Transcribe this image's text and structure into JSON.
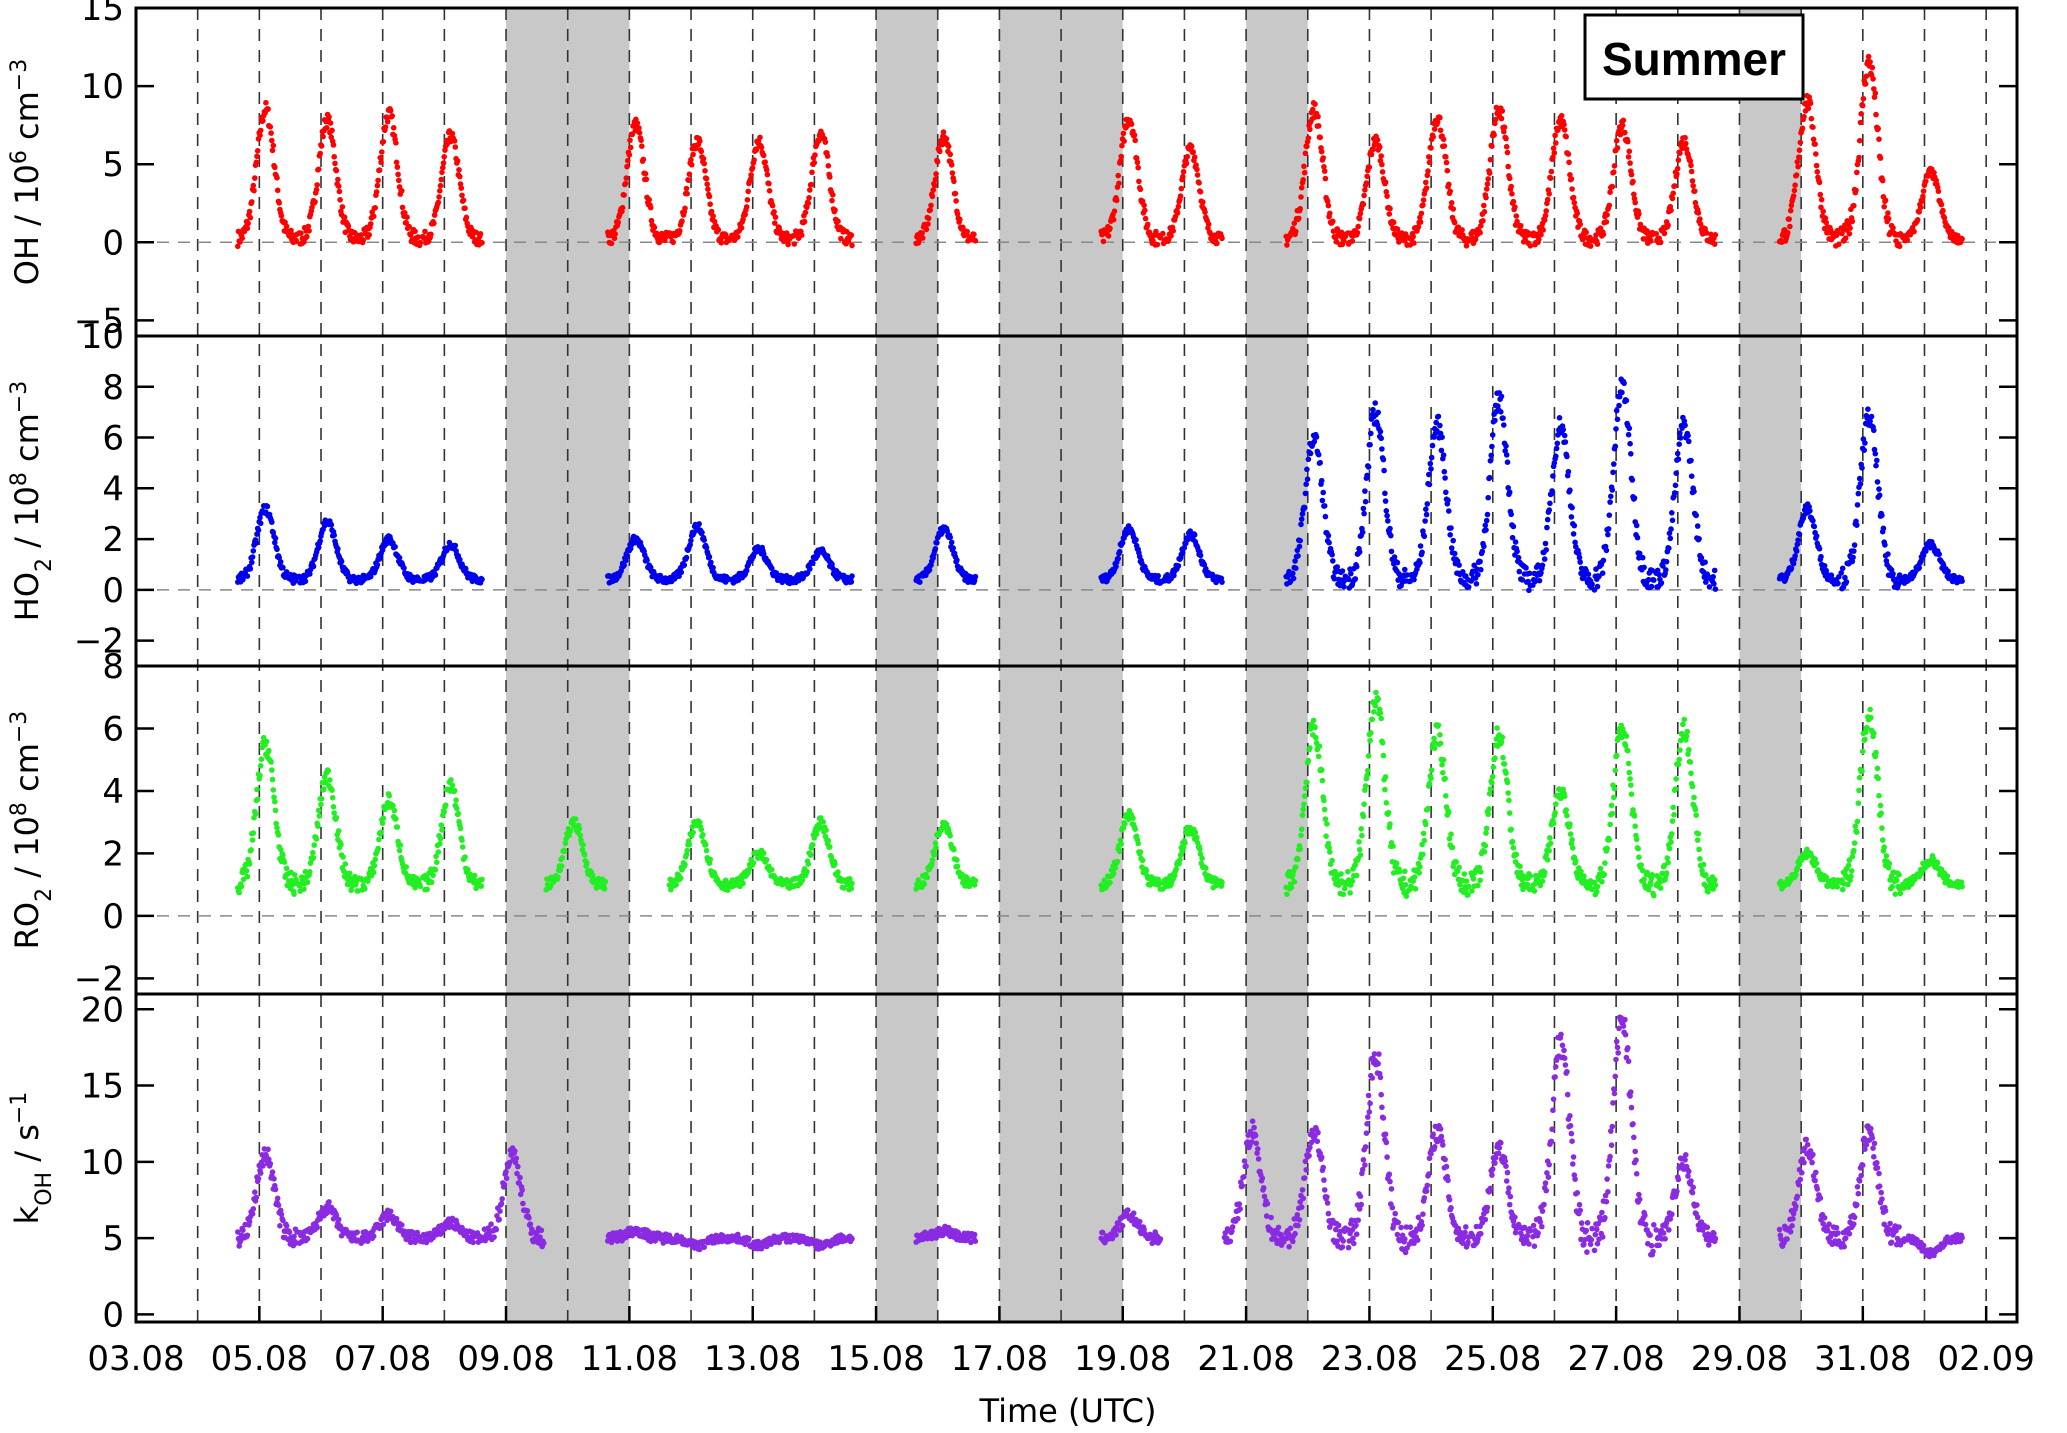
{
  "chart_data": {
    "type": "scatter",
    "season_label": "Summer",
    "xlabel": "Time (UTC)",
    "x_tick_labels": [
      "03.08",
      "05.08",
      "07.08",
      "09.08",
      "11.08",
      "13.08",
      "15.08",
      "17.08",
      "19.08",
      "21.08",
      "23.08",
      "25.08",
      "27.08",
      "29.08",
      "31.08",
      "02.09"
    ],
    "x_range": [
      "03.08",
      "02.09"
    ],
    "grid": "dashed vertical at day boundaries",
    "shaded_periods": [
      [
        "09.08",
        "10.08"
      ],
      [
        "10.08",
        "11.08"
      ],
      [
        "15.08",
        "16.08"
      ],
      [
        "17.08",
        "18.08"
      ],
      [
        "18.08",
        "19.08"
      ],
      [
        "21.08",
        "22.08"
      ],
      [
        "29.08",
        "30.08"
      ]
    ],
    "panels": [
      {
        "id": "oh",
        "ylabel_main": "OH  /  10",
        "ylabel_exp": "6",
        "ylabel_unit": " cm",
        "ylabel_unit_exp": "−3",
        "color": "#ff0000",
        "ylim": [
          -6,
          15
        ],
        "ytick_labels": [
          "−5",
          "0",
          "5",
          "10",
          "15"
        ],
        "zero_line": true,
        "peaks": [
          [
            "05.08",
            8.5
          ],
          [
            "06.08",
            7.8
          ],
          [
            "07.08",
            8.2
          ],
          [
            "08.08",
            6.8
          ],
          [
            "11.08",
            7.5
          ],
          [
            "12.08",
            6.5
          ],
          [
            "13.08",
            6.5
          ],
          [
            "14.08",
            7.0
          ],
          [
            "16.08",
            6.8
          ],
          [
            "19.08",
            8.0
          ],
          [
            "20.08",
            6.0
          ],
          [
            "22.08",
            8.5
          ],
          [
            "23.08",
            6.5
          ],
          [
            "24.08",
            8.0
          ],
          [
            "25.08",
            8.5
          ],
          [
            "26.08",
            7.8
          ],
          [
            "27.08",
            7.5
          ],
          [
            "28.08",
            6.5
          ],
          [
            "30.08",
            9.0
          ],
          [
            "31.08",
            11.5
          ],
          [
            "01.09",
            4.5
          ]
        ],
        "background": 0.2
      },
      {
        "id": "ho2",
        "ylabel_main": "HO",
        "ylabel_sub": "2",
        "ylabel_rest": "  /  10",
        "ylabel_exp": "8",
        "ylabel_unit": " cm",
        "ylabel_unit_exp": "−3",
        "color": "#0000ee",
        "ylim": [
          -3,
          10
        ],
        "ytick_labels": [
          "−2",
          "0",
          "2",
          "4",
          "6",
          "8",
          "10"
        ],
        "zero_line": true,
        "peaks": [
          [
            "05.08",
            3.2
          ],
          [
            "06.08",
            2.7
          ],
          [
            "07.08",
            2.0
          ],
          [
            "08.08",
            1.8
          ],
          [
            "11.08",
            2.0
          ],
          [
            "12.08",
            2.5
          ],
          [
            "13.08",
            1.6
          ],
          [
            "14.08",
            1.5
          ],
          [
            "16.08",
            2.4
          ],
          [
            "19.08",
            2.4
          ],
          [
            "20.08",
            2.2
          ],
          [
            "22.08",
            6.0
          ],
          [
            "23.08",
            7.0
          ],
          [
            "24.08",
            6.5
          ],
          [
            "25.08",
            7.5
          ],
          [
            "26.08",
            6.5
          ],
          [
            "27.08",
            8.0
          ],
          [
            "28.08",
            6.5
          ],
          [
            "30.08",
            3.2
          ],
          [
            "31.08",
            6.8
          ],
          [
            "01.09",
            1.8
          ]
        ],
        "background": 0.4
      },
      {
        "id": "ro2",
        "ylabel_main": "RO",
        "ylabel_sub": "2",
        "ylabel_rest": "  /  10",
        "ylabel_exp": "8",
        "ylabel_unit": " cm",
        "ylabel_unit_exp": "−3",
        "color": "#22ee22",
        "ylim": [
          -2.5,
          8
        ],
        "ytick_labels": [
          "−2",
          "0",
          "2",
          "4",
          "6",
          "8"
        ],
        "zero_line": true,
        "peaks": [
          [
            "05.08",
            5.5
          ],
          [
            "06.08",
            4.5
          ],
          [
            "07.08",
            3.7
          ],
          [
            "08.08",
            4.2
          ],
          [
            "10.08",
            3.0
          ],
          [
            "12.08",
            3.0
          ],
          [
            "13.08",
            2.0
          ],
          [
            "14.08",
            3.0
          ],
          [
            "16.08",
            3.0
          ],
          [
            "19.08",
            3.2
          ],
          [
            "20.08",
            2.8
          ],
          [
            "22.08",
            6.0
          ],
          [
            "23.08",
            7.0
          ],
          [
            "24.08",
            5.8
          ],
          [
            "25.08",
            5.8
          ],
          [
            "26.08",
            4.0
          ],
          [
            "27.08",
            6.0
          ],
          [
            "28.08",
            6.0
          ],
          [
            "30.08",
            2.0
          ],
          [
            "31.08",
            6.5
          ],
          [
            "01.09",
            1.8
          ]
        ],
        "background": 1.0
      },
      {
        "id": "koh",
        "ylabel_main": "k",
        "ylabel_sub": "OH",
        "ylabel_rest": "  /  s",
        "ylabel_exp": "−1",
        "color": "#8a2be2",
        "ylim": [
          -0.5,
          21
        ],
        "ytick_labels": [
          "0",
          "5",
          "10",
          "15",
          "20"
        ],
        "zero_line": false,
        "peaks": [
          [
            "05.08",
            10.5
          ],
          [
            "06.08",
            7.0
          ],
          [
            "07.08",
            6.5
          ],
          [
            "08.08",
            6.0
          ],
          [
            "09.08",
            10.5
          ],
          [
            "11.08",
            5.5
          ],
          [
            "12.08",
            4.5
          ],
          [
            "13.08",
            4.5
          ],
          [
            "14.08",
            4.5
          ],
          [
            "16.08",
            5.5
          ],
          [
            "19.08",
            6.5
          ],
          [
            "21.08",
            12.0
          ],
          [
            "22.08",
            12.0
          ],
          [
            "23.08",
            17.0
          ],
          [
            "24.08",
            12.0
          ],
          [
            "25.08",
            11.0
          ],
          [
            "26.08",
            18.0
          ],
          [
            "27.08",
            19.5
          ],
          [
            "28.08",
            10.0
          ],
          [
            "30.08",
            11.0
          ],
          [
            "31.08",
            12.0
          ],
          [
            "01.09",
            4.0
          ]
        ],
        "background": 5.0
      }
    ]
  }
}
